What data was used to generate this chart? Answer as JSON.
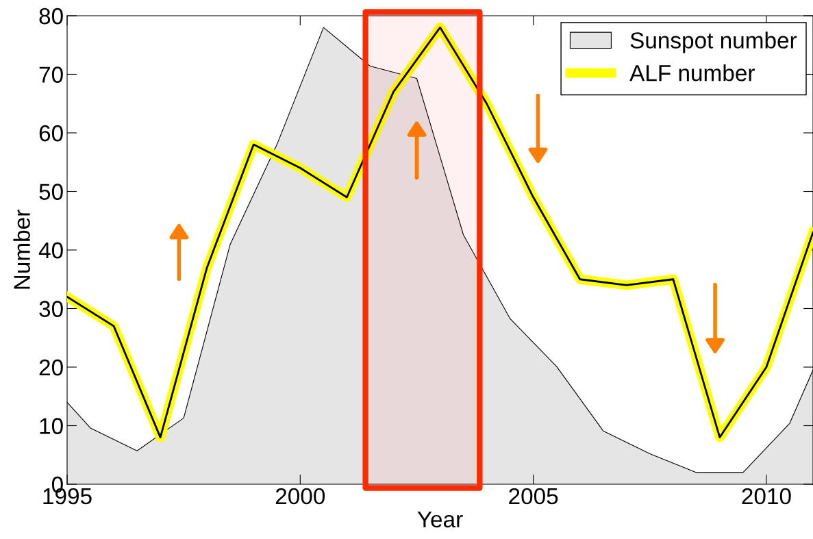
{
  "chart_data": {
    "type": "line",
    "xlabel": "Year",
    "ylabel": "Number",
    "xlim": [
      1995,
      2011
    ],
    "ylim": [
      0,
      80
    ],
    "xticks": [
      1995,
      2000,
      2005,
      2010
    ],
    "yticks": [
      0,
      10,
      20,
      30,
      40,
      50,
      60,
      70,
      80
    ],
    "series": [
      {
        "name": "Sunspot number",
        "type": "area",
        "color": "#e5e5e5",
        "x": [
          1995,
          1995.5,
          1996.5,
          1997.5,
          1998.5,
          1999.5,
          2000.5,
          2001.5,
          2002.5,
          2003.5,
          2004.5,
          2005.5,
          2006.5,
          2007.5,
          2008.5,
          2009.5,
          2010.5,
          2011
        ],
        "values": [
          14,
          9.6,
          5.7,
          11.3,
          41,
          58,
          78,
          71.4,
          69.3,
          42.6,
          28.3,
          20.1,
          9.1,
          5.2,
          2,
          2,
          10.4,
          19.5
        ]
      },
      {
        "name": "ALF number",
        "color": "#ffff00",
        "x": [
          1995,
          1996,
          1997,
          1998,
          1999,
          2000,
          2001,
          2002,
          2003,
          2004,
          2005,
          2006,
          2007,
          2008,
          2009,
          2010,
          2011
        ],
        "values": [
          32,
          27,
          8,
          37,
          58,
          54,
          49,
          67,
          78,
          65,
          49,
          35,
          34,
          35,
          8,
          20,
          43
        ]
      }
    ],
    "bands": [
      {
        "axis": "x",
        "from": 2001.4,
        "to": 2003.85,
        "color": "#ff2a00"
      }
    ],
    "legend": "top right",
    "grid": false
  }
}
